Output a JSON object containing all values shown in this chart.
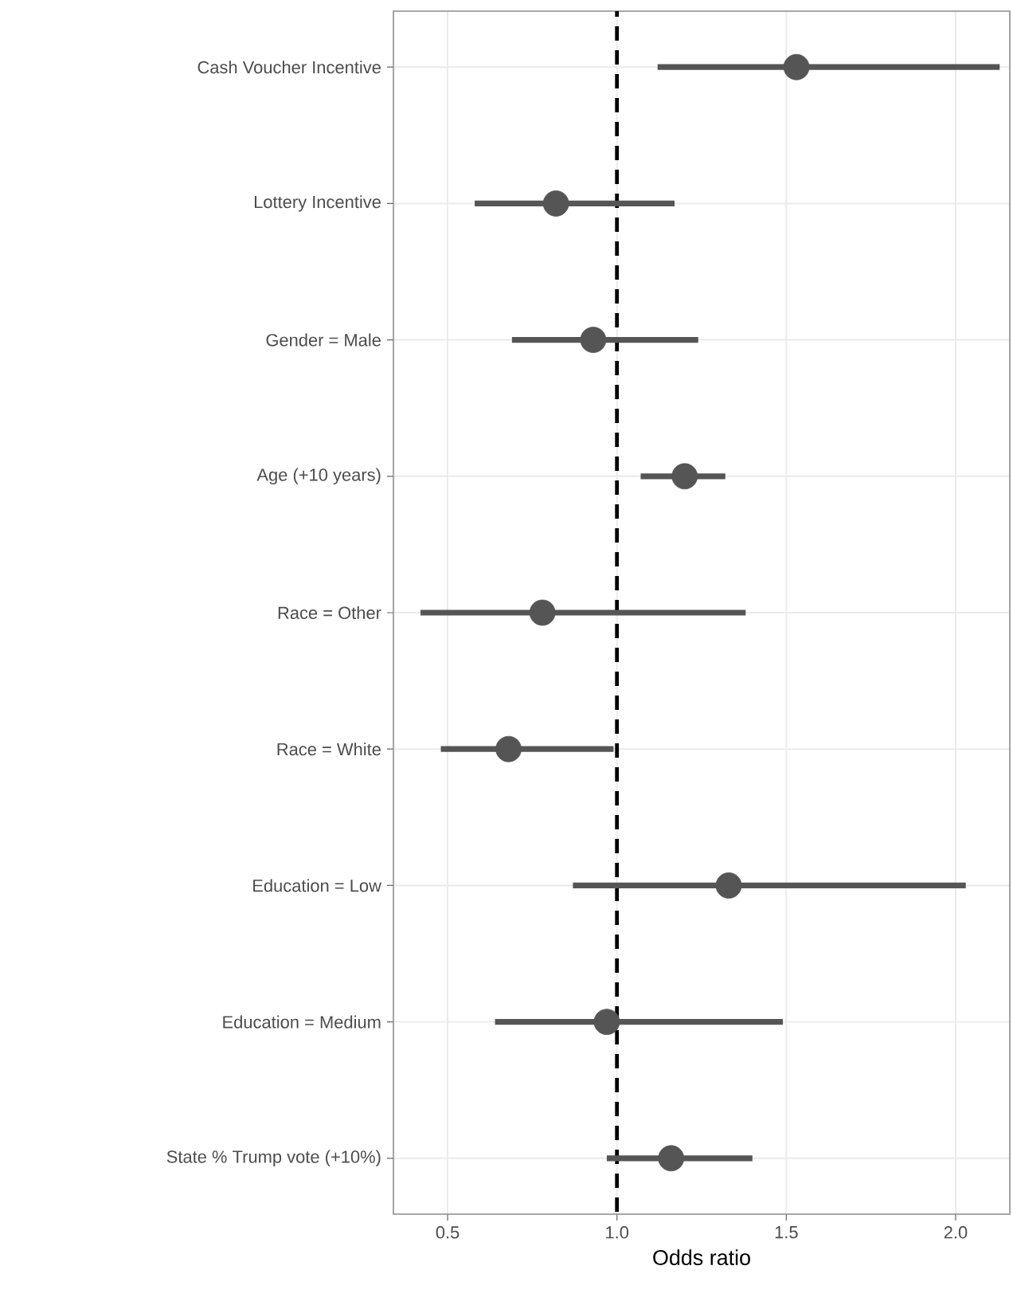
{
  "chart_data": {
    "type": "scatter",
    "orientation": "horizontal",
    "xlabel": "Odds ratio",
    "categories": [
      "Cash Voucher Incentive",
      "Lottery Incentive",
      "Gender = Male",
      "Age (+10 years)",
      "Race = Other",
      "Race = White",
      "Education = Low",
      "Education = Medium",
      "State % Trump vote (+10%)"
    ],
    "values": [
      1.53,
      0.82,
      0.93,
      1.2,
      0.78,
      0.68,
      1.33,
      0.97,
      1.16
    ],
    "errors": [
      [
        1.12,
        2.13
      ],
      [
        0.58,
        1.17
      ],
      [
        0.69,
        1.24
      ],
      [
        1.07,
        1.32
      ],
      [
        0.42,
        1.38
      ],
      [
        0.48,
        0.99
      ],
      [
        0.87,
        2.03
      ],
      [
        0.64,
        1.49
      ],
      [
        0.97,
        1.4
      ]
    ],
    "color": "#555555",
    "marker": "circle",
    "xlim": [
      0.34,
      2.16
    ],
    "xticks": [
      {
        "value": 0.5,
        "label": "0.5"
      },
      {
        "value": 1.0,
        "label": "1.0"
      },
      {
        "value": 1.5,
        "label": "1.5"
      },
      {
        "value": 2.0,
        "label": "2.0"
      }
    ],
    "ref_lines": [
      {
        "axis": "x",
        "value": 1,
        "color": "#000000",
        "line_style": "dashed"
      }
    ],
    "grid": true
  }
}
